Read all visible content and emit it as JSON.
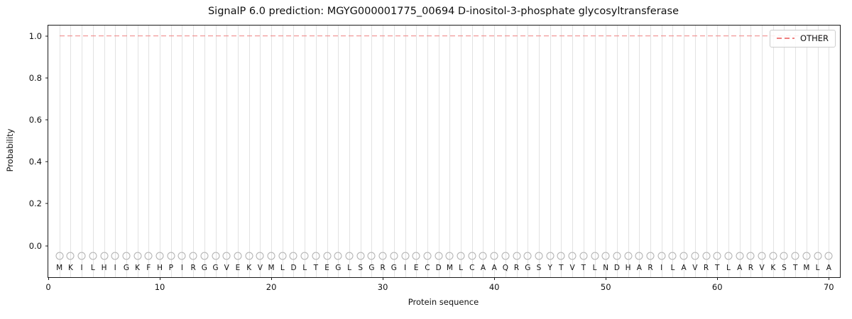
{
  "chart_data": {
    "type": "line",
    "title": "SignalP 6.0 prediction: MGYG000001775_00694 D-inositol-3-phosphate glycosyltransferase",
    "xlabel": "Protein sequence",
    "ylabel": "Probability",
    "xlim": [
      0,
      71
    ],
    "ylim": [
      -0.15,
      1.05
    ],
    "x_ticks": [
      0,
      10,
      20,
      30,
      40,
      50,
      60,
      70
    ],
    "y_ticks": [
      "0.0",
      "0.2",
      "0.4",
      "0.6",
      "0.8",
      "1.0"
    ],
    "sequence": "MKILHIGKFHPIRGGVEKVMLDLTEGLSGRGIECDMLCAAQRGSYTVTLNDHARILAVRTLARVKSTMLA",
    "series": [
      {
        "name": "OTHER",
        "linestyle": "dashed",
        "color": "#f08080",
        "x_start": 1,
        "x_end": 70,
        "constant_y": 1.0
      }
    ],
    "residue_marker": {
      "shape": "open-circle",
      "color": "#b0b0b0",
      "y": -0.05
    },
    "residue_letter_y": -0.105,
    "grid": {
      "vertical_per_residue": true,
      "color": "#e2e2e2"
    },
    "legend": {
      "position": "upper right",
      "entries": [
        {
          "label": "OTHER",
          "color": "#f08080",
          "linestyle": "dashed"
        }
      ]
    }
  }
}
